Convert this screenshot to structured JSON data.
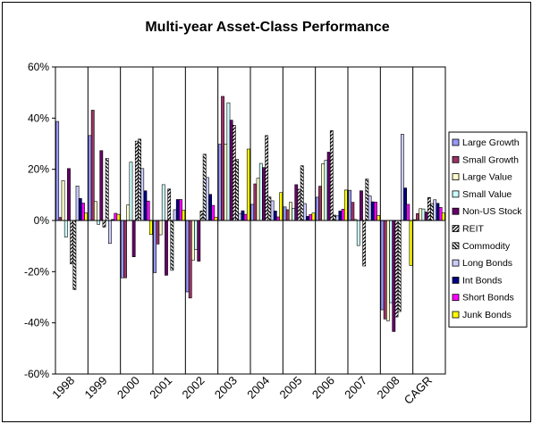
{
  "chart_data": {
    "type": "bar",
    "title": "Multi-year Asset-Class Performance",
    "xlabel": "",
    "ylabel": "",
    "ylim": [
      -60,
      60
    ],
    "yticks": [
      -60,
      -40,
      -20,
      0,
      20,
      40,
      60
    ],
    "ytick_labels": [
      "-60%",
      "-40%",
      "-20%",
      "0%",
      "20%",
      "40%",
      "60%"
    ],
    "grid": false,
    "legend_position": "right",
    "categories": [
      "1998",
      "1999",
      "2000",
      "2001",
      "2002",
      "2003",
      "2004",
      "2005",
      "2006",
      "2007",
      "2008",
      "CAGR"
    ],
    "series": [
      {
        "name": "Large Growth",
        "color": "#9999FF",
        "pattern": "solid",
        "values": [
          38.7,
          33.2,
          -22.4,
          -20.4,
          -27.9,
          29.8,
          6.3,
          5.3,
          9.1,
          11.8,
          -34.9,
          0.3
        ]
      },
      {
        "name": "Small Growth",
        "color": "#993366",
        "pattern": "solid",
        "values": [
          1.2,
          43.1,
          -22.4,
          -9.2,
          -30.3,
          48.5,
          14.3,
          4.2,
          13.4,
          7.1,
          -38.5,
          2.7
        ]
      },
      {
        "name": "Large Value",
        "color": "#FFFFCC",
        "pattern": "solid",
        "values": [
          15.6,
          7.4,
          6.1,
          -5.6,
          -15.5,
          29.9,
          16.5,
          7.1,
          22.2,
          0.4,
          -39.2,
          4.6
        ]
      },
      {
        "name": "Small Value",
        "color": "#CCFFFF",
        "pattern": "solid",
        "values": [
          -6.5,
          -1.5,
          22.8,
          14.0,
          -11.4,
          46.0,
          22.3,
          4.7,
          23.5,
          -9.8,
          -32.1,
          4.5
        ]
      },
      {
        "name": "Non-US Stock",
        "color": "#660066",
        "pattern": "solid",
        "values": [
          20.3,
          27.3,
          -14.2,
          -21.4,
          -15.9,
          39.2,
          20.7,
          14.0,
          26.7,
          11.6,
          -43.4,
          3.3
        ]
      },
      {
        "name": "REIT",
        "color": "#FFFFFF",
        "pattern": "bdiag",
        "values": [
          -17.0,
          -2.6,
          31.0,
          12.3,
          3.7,
          37.2,
          33.2,
          12.2,
          35.1,
          -17.8,
          -37.7,
          9.0
        ]
      },
      {
        "name": "Commodity",
        "color": "#FFFFFF",
        "pattern": "fdiag",
        "values": [
          -27.0,
          24.3,
          31.8,
          -19.5,
          25.9,
          23.9,
          9.2,
          21.4,
          2.1,
          16.2,
          -35.6,
          6.6
        ]
      },
      {
        "name": "Long Bonds",
        "color": "#CCCCFF",
        "pattern": "solid",
        "values": [
          13.5,
          -9.0,
          20.3,
          4.2,
          16.8,
          2.7,
          7.7,
          6.6,
          1.8,
          9.6,
          33.7,
          8.1
        ]
      },
      {
        "name": "Int Bonds",
        "color": "#000080",
        "pattern": "solid",
        "values": [
          8.6,
          0.4,
          11.6,
          8.2,
          10.2,
          3.8,
          3.7,
          1.6,
          3.7,
          7.3,
          12.7,
          6.7
        ]
      },
      {
        "name": "Short Bonds",
        "color": "#FF00FF",
        "pattern": "solid",
        "values": [
          6.8,
          2.8,
          7.6,
          8.2,
          5.9,
          2.4,
          1.4,
          2.3,
          4.4,
          7.2,
          6.3,
          5.1
        ]
      },
      {
        "name": "Junk Bonds",
        "color": "#FFFF00",
        "pattern": "solid",
        "values": [
          2.9,
          2.4,
          -5.5,
          4.0,
          1.3,
          27.9,
          10.9,
          2.9,
          11.9,
          2.0,
          -17.6,
          3.0
        ]
      }
    ]
  }
}
